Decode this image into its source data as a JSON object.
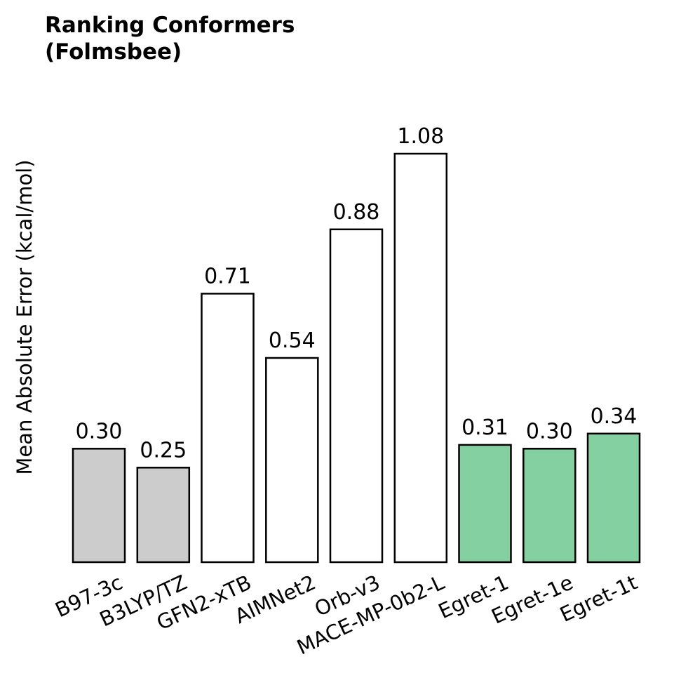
{
  "chart_data": {
    "type": "bar",
    "title_lines": [
      "Ranking Conformers",
      "(Folmsbee)"
    ],
    "ylabel": "Mean Absolute Error (kcal/mol)",
    "xlabel": "",
    "categories": [
      "B97-3c",
      "B3LYP/TZ",
      "GFN2-xTB",
      "AIMNet2",
      "Orb-v3",
      "MACE-MP-0b2-L",
      "Egret-1",
      "Egret-1e",
      "Egret-1t"
    ],
    "values": [
      0.3,
      0.25,
      0.71,
      0.54,
      0.88,
      1.08,
      0.31,
      0.3,
      0.34
    ],
    "value_labels": [
      "0.30",
      "0.25",
      "0.71",
      "0.54",
      "0.88",
      "1.08",
      "0.31",
      "0.30",
      "0.34"
    ],
    "colors": [
      "#cccccc",
      "#cccccc",
      "#ffffff",
      "#ffffff",
      "#ffffff",
      "#ffffff",
      "#85d0a0",
      "#85d0a0",
      "#85d0a0"
    ],
    "edge_color": "#000000",
    "ylim": [
      0,
      1.08
    ],
    "grid": false,
    "legend": "none"
  }
}
